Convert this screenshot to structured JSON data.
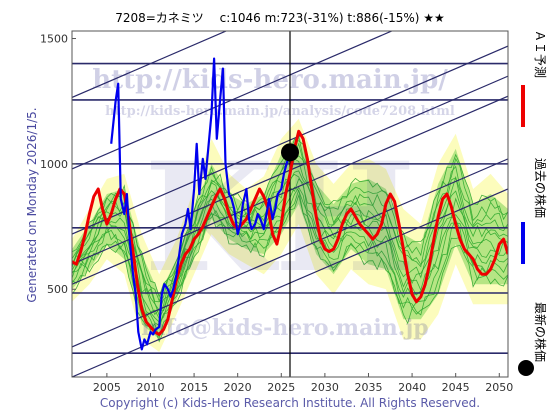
{
  "chart_data": {
    "type": "line",
    "title": "7208=カネミツ　 c:1046  m:723(-31%)  t:886(-15%)  ★★",
    "side_label": "Generated on Monday 2026/1/5.",
    "footer": "Copyright (c) Kids-Hero Research Institute. All Rights Reserved.",
    "watermarks": [
      "http://kids-hero.main.jp/",
      "http://kids-hero.main.jp/analysis/code7208.html",
      "info@kids-hero.main.jp",
      "KH"
    ],
    "xlim": [
      2001,
      2051
    ],
    "ylim": [
      150,
      1530
    ],
    "x_ticks": [
      2005,
      2010,
      2015,
      2020,
      2025,
      2030,
      2035,
      2040,
      2045,
      2050
    ],
    "y_ticks": [
      500,
      1000,
      1500
    ],
    "latest_price": {
      "x": 2026.0,
      "y": 1046
    },
    "current_year_line": 2026.0,
    "horizontal_lines": [
      245,
      485,
      745,
      1000,
      1255,
      1400
    ],
    "trend_channels": {
      "slope_per_year": 15.0,
      "levels_at_2001": [
        980,
        1265,
        720,
        600,
        520,
        270,
        150
      ]
    },
    "series": [
      {
        "name": "ＡＩ予測",
        "color": "#ee0000",
        "x": [
          2001,
          2001.5,
          2002,
          2002.5,
          2003,
          2003.5,
          2004,
          2004.5,
          2005,
          2005.5,
          2006,
          2006.5,
          2007,
          2007.5,
          2008,
          2008.5,
          2009,
          2009.5,
          2010,
          2010.5,
          2011,
          2011.5,
          2012,
          2012.5,
          2013,
          2013.5,
          2014,
          2014.5,
          2015,
          2015.5,
          2016,
          2016.5,
          2017,
          2017.5,
          2018,
          2018.5,
          2019,
          2019.5,
          2020,
          2020.5,
          2021,
          2021.5,
          2022,
          2022.5,
          2023,
          2023.5,
          2024,
          2024.5,
          2025,
          2025.5,
          2026,
          2026.5,
          2027,
          2027.5,
          2028,
          2028.5,
          2029,
          2029.5,
          2030,
          2030.5,
          2031,
          2031.5,
          2032,
          2032.5,
          2033,
          2033.5,
          2034,
          2034.5,
          2035,
          2035.5,
          2036,
          2036.5,
          2037,
          2037.5,
          2038,
          2038.5,
          2039,
          2039.5,
          2040,
          2040.5,
          2041,
          2041.5,
          2042,
          2042.5,
          2043,
          2043.5,
          2044,
          2044.5,
          2045,
          2045.5,
          2046,
          2046.5,
          2047,
          2047.5,
          2048,
          2048.5,
          2049,
          2049.5,
          2050,
          2050.5,
          2051
        ],
        "y": [
          610,
          600,
          650,
          720,
          800,
          870,
          900,
          820,
          760,
          800,
          860,
          900,
          880,
          780,
          650,
          520,
          420,
          370,
          350,
          330,
          320,
          340,
          380,
          460,
          540,
          600,
          640,
          660,
          700,
          720,
          750,
          790,
          830,
          870,
          900,
          860,
          800,
          760,
          740,
          760,
          780,
          820,
          860,
          900,
          870,
          820,
          720,
          680,
          760,
          880,
          960,
          1060,
          1130,
          1100,
          1020,
          900,
          790,
          700,
          660,
          650,
          660,
          700,
          760,
          800,
          820,
          790,
          760,
          740,
          720,
          700,
          720,
          760,
          840,
          880,
          850,
          760,
          660,
          560,
          480,
          450,
          470,
          520,
          600,
          700,
          790,
          860,
          880,
          830,
          760,
          700,
          660,
          640,
          620,
          580,
          560,
          560,
          580,
          620,
          680,
          700,
          640
        ]
      },
      {
        "name": "過去の株価",
        "color": "#0000ee",
        "x": [
          2005.5,
          2006,
          2006.3,
          2006.6,
          2007,
          2007.3,
          2007.6,
          2008,
          2008.3,
          2008.6,
          2009,
          2009.3,
          2009.6,
          2010,
          2010.3,
          2010.6,
          2011,
          2011.3,
          2011.6,
          2012,
          2012.3,
          2012.6,
          2013,
          2013.3,
          2013.6,
          2014,
          2014.3,
          2014.6,
          2015,
          2015.3,
          2015.6,
          2016,
          2016.3,
          2016.6,
          2017,
          2017.3,
          2017.6,
          2018,
          2018.3,
          2018.6,
          2019,
          2019.3,
          2019.6,
          2020,
          2020.3,
          2020.6,
          2021,
          2021.3,
          2021.6,
          2022,
          2022.3,
          2022.6,
          2023,
          2023.3,
          2023.6,
          2024,
          2024.3,
          2024.6,
          2025,
          2025.3,
          2025.6,
          2026
        ],
        "y": [
          1080,
          1250,
          1320,
          860,
          800,
          880,
          700,
          560,
          480,
          330,
          260,
          300,
          280,
          330,
          320,
          340,
          350,
          480,
          520,
          500,
          470,
          500,
          560,
          640,
          720,
          760,
          820,
          740,
          900,
          1080,
          880,
          1020,
          940,
          1050,
          1200,
          1420,
          1100,
          1260,
          1380,
          1000,
          880,
          860,
          820,
          720,
          760,
          840,
          900,
          780,
          740,
          760,
          800,
          780,
          740,
          800,
          860,
          780,
          820,
          880,
          900,
          960,
          1000,
          1046
        ]
      },
      {
        "name": "最新の株価",
        "color": "#000000"
      }
    ],
    "bands": [
      {
        "name": "outer-yellow",
        "color": "#fbfbb0",
        "x": [
          2001,
          2003,
          2005,
          2007,
          2009,
          2011,
          2013,
          2015,
          2017,
          2019,
          2021,
          2023,
          2025,
          2027,
          2029,
          2031,
          2033,
          2035,
          2037,
          2039,
          2041,
          2043,
          2045,
          2047,
          2049,
          2051
        ],
        "upper": [
          700,
          820,
          940,
          960,
          720,
          560,
          700,
          900,
          1100,
          960,
          900,
          950,
          1100,
          1180,
          1000,
          920,
          1000,
          1020,
          980,
          820,
          760,
          1000,
          1120,
          900,
          960,
          880
        ],
        "lower": [
          450,
          520,
          620,
          560,
          300,
          250,
          400,
          560,
          720,
          640,
          600,
          560,
          640,
          760,
          560,
          480,
          580,
          520,
          500,
          300,
          300,
          400,
          600,
          440,
          440,
          440
        ]
      },
      {
        "name": "inner-green",
        "color": "#a9e07a",
        "x": [
          2001,
          2003,
          2005,
          2007,
          2009,
          2011,
          2013,
          2015,
          2017,
          2019,
          2021,
          2023,
          2025,
          2027,
          2029,
          2031,
          2033,
          2035,
          2037,
          2039,
          2041,
          2043,
          2045,
          2047,
          2049,
          2051
        ],
        "upper": [
          660,
          760,
          880,
          900,
          640,
          480,
          620,
          820,
          1000,
          880,
          840,
          880,
          1040,
          1120,
          920,
          840,
          920,
          940,
          900,
          720,
          680,
          920,
          1060,
          840,
          880,
          820
        ],
        "lower": [
          500,
          580,
          680,
          620,
          360,
          300,
          460,
          620,
          780,
          700,
          660,
          640,
          720,
          840,
          640,
          560,
          660,
          600,
          580,
          380,
          380,
          480,
          680,
          520,
          520,
          520
        ]
      }
    ],
    "legend_position": "right-vertical",
    "grid": false
  }
}
